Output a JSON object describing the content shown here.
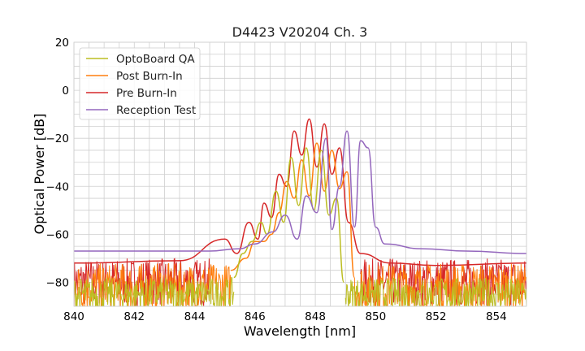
{
  "chart_data": {
    "type": "line",
    "title": "D4423 V20204 Ch. 3",
    "xlabel": "Wavelength [nm]",
    "ylabel": "Optical Power [dB]",
    "xlim": [
      840,
      855
    ],
    "ylim": [
      -90,
      20
    ],
    "x_ticks": [
      "840",
      "842",
      "844",
      "846",
      "848",
      "850",
      "852",
      "854"
    ],
    "y_ticks": [
      "20",
      "0",
      "−20",
      "−40",
      "−60",
      "−80"
    ],
    "x_tick_values": [
      840,
      842,
      844,
      846,
      848,
      850,
      852,
      854
    ],
    "y_tick_values": [
      20,
      0,
      -20,
      -40,
      -60,
      -80
    ],
    "grid": true,
    "legend_position": "top-left",
    "series": [
      {
        "name": "OptoBoard QA",
        "color": "#bcbd22",
        "noise_floor": [
          -92,
          -78
        ],
        "noise_range_nm": [
          840,
          845.3,
          849.0,
          855
        ],
        "x": [
          845.3,
          845.6,
          845.9,
          846.2,
          846.4,
          846.7,
          846.95,
          847.2,
          847.45,
          847.7,
          847.95,
          848.2,
          848.45,
          848.7,
          848.95
        ],
        "y": [
          -78,
          -68,
          -63,
          -55,
          -60,
          -42,
          -55,
          -28,
          -48,
          -24,
          -50,
          -25,
          -52,
          -45,
          -80
        ]
      },
      {
        "name": "Post Burn-In",
        "color": "#ff7f0e",
        "noise_floor": [
          -92,
          -72
        ],
        "noise_range_nm": [
          840,
          845.2,
          849.3,
          855
        ],
        "x": [
          845.2,
          845.7,
          846.0,
          846.3,
          846.55,
          846.8,
          847.05,
          847.3,
          847.55,
          847.8,
          848.05,
          848.3,
          848.55,
          848.8,
          849.05,
          849.3
        ],
        "y": [
          -75,
          -70,
          -63,
          -63,
          -60,
          -51,
          -38,
          -45,
          -29,
          -44,
          -22,
          -42,
          -25,
          -41,
          -34,
          -78
        ]
      },
      {
        "name": "Pre Burn-In",
        "color": "#d62728",
        "noise_floor": [
          -90,
          -70
        ],
        "noise_range_nm": [
          840,
          844.5,
          849.5,
          855
        ],
        "x": [
          840,
          843.5,
          845.0,
          845.4,
          845.8,
          846.1,
          846.3,
          846.55,
          846.8,
          847.05,
          847.3,
          847.55,
          847.8,
          848.05,
          848.3,
          848.55,
          848.8,
          849.1,
          849.5,
          850.5,
          852.0,
          855.0
        ],
        "y": [
          -72,
          -71,
          -62,
          -68,
          -55,
          -62,
          -47,
          -53,
          -35,
          -40,
          -17,
          -27,
          -12,
          -32,
          -14,
          -35,
          -24,
          -55,
          -68,
          -72,
          -73,
          -72
        ],
        "in_legend": true
      },
      {
        "name": "Reception Test",
        "color": "#9467bd",
        "x": [
          840,
          843.0,
          844.5,
          845.5,
          846.0,
          846.6,
          847.0,
          847.4,
          847.7,
          848.05,
          848.35,
          848.55,
          848.8,
          849.05,
          849.3,
          849.5,
          849.75,
          850.0,
          850.3,
          851.5,
          853.0,
          855.0
        ],
        "y": [
          -67,
          -67,
          -67,
          -66,
          -64,
          -59,
          -52,
          -62,
          -44,
          -51,
          -20,
          -58,
          -40,
          -17,
          -57,
          -21,
          -24,
          -57,
          -64,
          -66,
          -67,
          -68
        ]
      }
    ]
  }
}
